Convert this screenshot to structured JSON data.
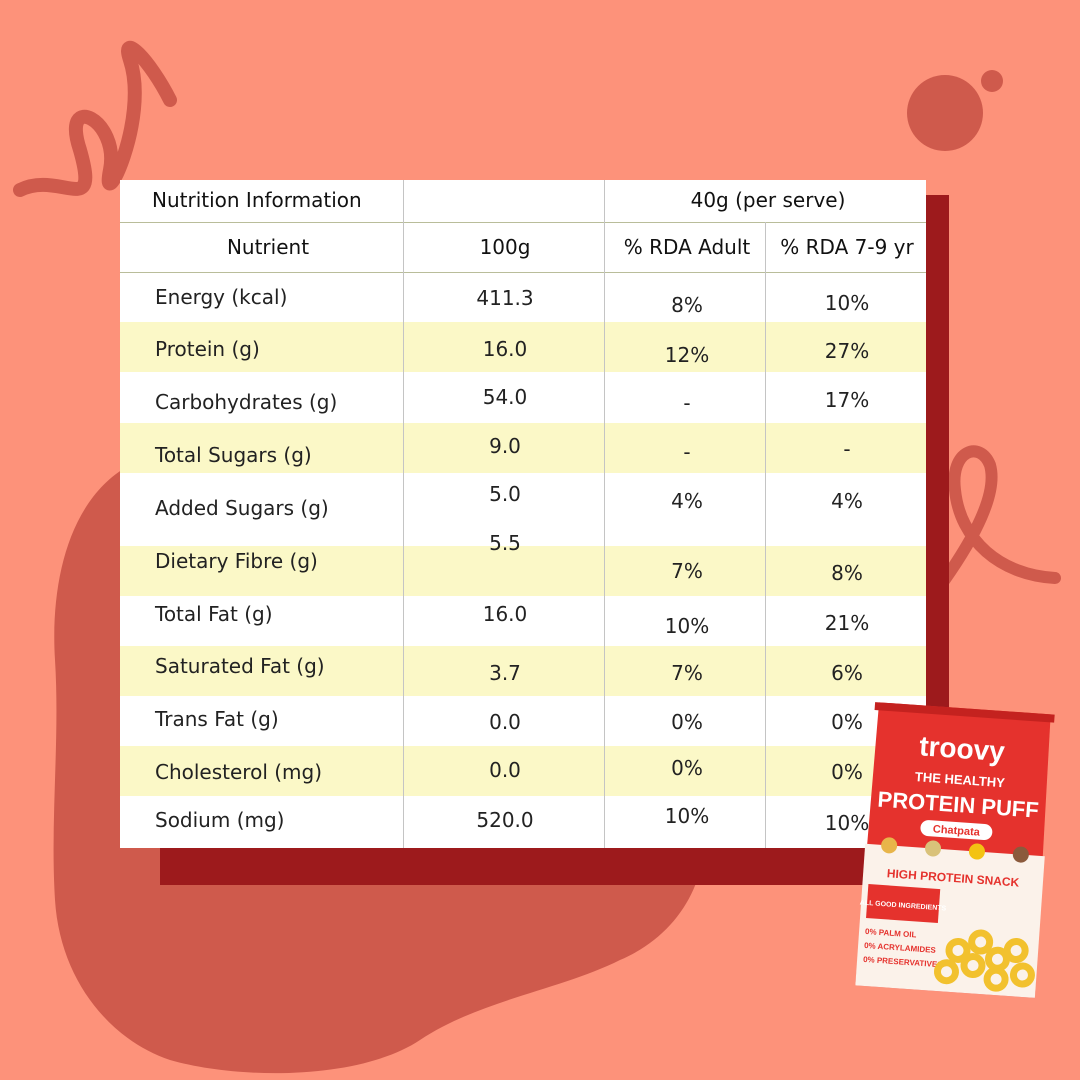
{
  "table": {
    "title": "Nutrition Information",
    "serve_label": "40g (per serve)",
    "columns": [
      "Nutrient",
      "100g",
      "% RDA Adult",
      "% RDA 7-9 yr"
    ],
    "rows": [
      {
        "nutrient": "Energy (kcal)",
        "per100g": "411.3",
        "rda_adult": "8%",
        "rda_child": "10%"
      },
      {
        "nutrient": "Protein (g)",
        "per100g": "16.0",
        "rda_adult": "12%",
        "rda_child": "27%"
      },
      {
        "nutrient": "Carbohydrates (g)",
        "per100g": "54.0",
        "rda_adult": "-",
        "rda_child": "17%"
      },
      {
        "nutrient": "Total Sugars (g)",
        "per100g": "9.0",
        "rda_adult": "-",
        "rda_child": "-"
      },
      {
        "nutrient": "Added Sugars (g)",
        "per100g": "5.0",
        "rda_adult": "4%",
        "rda_child": "4%"
      },
      {
        "nutrient": "Dietary Fibre (g)",
        "per100g": "5.5",
        "rda_adult": "7%",
        "rda_child": "8%"
      },
      {
        "nutrient": "Total Fat (g)",
        "per100g": "16.0",
        "rda_adult": "10%",
        "rda_child": "21%"
      },
      {
        "nutrient": "Saturated Fat (g)",
        "per100g": "3.7",
        "rda_adult": "7%",
        "rda_child": "6%"
      },
      {
        "nutrient": "Trans Fat (g)",
        "per100g": "0.0",
        "rda_adult": "0%",
        "rda_child": "0%"
      },
      {
        "nutrient": "Cholesterol (mg)",
        "per100g": "0.0",
        "rda_adult": "0%",
        "rda_child": "0%"
      },
      {
        "nutrient": "Sodium (mg)",
        "per100g": "520.0",
        "rda_adult": "10%",
        "rda_child": "10%"
      }
    ]
  },
  "pack": {
    "brand": "troovy",
    "tagline": "THE HEALTHY",
    "product": "PROTEIN PUFF",
    "flavour": "Chatpata",
    "banner": "HIGH PROTEIN SNACK",
    "badge": "ALL GOOD INGREDIENTS",
    "claims": [
      "0% PALM OIL",
      "0% ACRYLAMIDES",
      "0% PRESERVATIVES"
    ]
  },
  "colors": {
    "background": "#fd927a",
    "shadow_block": "#9d1a1c",
    "blob": "#cf5a4c",
    "row_band": "#fbf8c7",
    "pack_red": "#e5322d"
  }
}
